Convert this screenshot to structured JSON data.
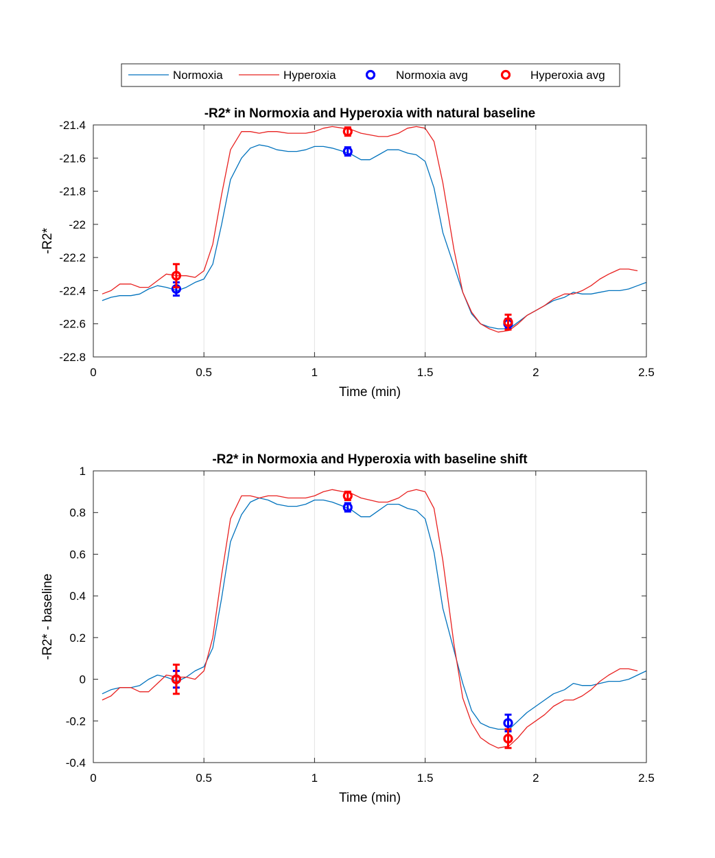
{
  "legend": {
    "entries": [
      {
        "label": "Normoxia",
        "kind": "line",
        "color": "#0072BD"
      },
      {
        "label": "Hyperoxia",
        "kind": "line",
        "color": "#E8201F"
      },
      {
        "label": "Normoxia avg",
        "kind": "marker",
        "color": "#0000FF"
      },
      {
        "label": "Hyperoxia avg",
        "kind": "marker",
        "color": "#FF0000"
      }
    ]
  },
  "chart_data": [
    {
      "type": "line",
      "title": "-R2* in Normoxia and Hyperoxia with natural baseline",
      "xlabel": "Time (min)",
      "ylabel": "-R2*",
      "xlim": [
        0,
        2.5
      ],
      "ylim": [
        -22.8,
        -21.4
      ],
      "xticks": [
        0,
        0.5,
        1,
        1.5,
        2,
        2.5
      ],
      "xtick_labels": [
        "0",
        "0.5",
        "1",
        "1.5",
        "2",
        "2.5"
      ],
      "yticks": [
        -22.8,
        -22.6,
        -22.4,
        -22.2,
        -22,
        -21.8,
        -21.6,
        -21.4
      ],
      "ytick_labels": [
        "-22.8",
        "-22.6",
        "-22.4",
        "-22.2",
        "-22",
        "-21.8",
        "-21.6",
        "-21.4"
      ],
      "xgrid": [
        0.5,
        1,
        1.5,
        2
      ],
      "series": [
        {
          "name": "Normoxia",
          "color": "#0072BD",
          "x": [
            0.04,
            0.08,
            0.12,
            0.17,
            0.21,
            0.25,
            0.29,
            0.33,
            0.38,
            0.42,
            0.46,
            0.5,
            0.54,
            0.58,
            0.62,
            0.67,
            0.71,
            0.75,
            0.79,
            0.83,
            0.88,
            0.92,
            0.96,
            1.0,
            1.04,
            1.08,
            1.13,
            1.17,
            1.21,
            1.25,
            1.29,
            1.33,
            1.38,
            1.42,
            1.46,
            1.5,
            1.54,
            1.58,
            1.63,
            1.67,
            1.71,
            1.75,
            1.79,
            1.83,
            1.88,
            1.92,
            1.96,
            2.0,
            2.04,
            2.08,
            2.13,
            2.17,
            2.21,
            2.25,
            2.29,
            2.33,
            2.38,
            2.42,
            2.46,
            2.5
          ],
          "y": [
            -22.46,
            -22.44,
            -22.43,
            -22.43,
            -22.42,
            -22.39,
            -22.37,
            -22.38,
            -22.4,
            -22.38,
            -22.35,
            -22.33,
            -22.24,
            -22.0,
            -21.73,
            -21.6,
            -21.54,
            -21.52,
            -21.53,
            -21.55,
            -21.56,
            -21.56,
            -21.55,
            -21.53,
            -21.53,
            -21.54,
            -21.56,
            -21.58,
            -21.61,
            -21.61,
            -21.58,
            -21.55,
            -21.55,
            -21.57,
            -21.58,
            -21.62,
            -21.78,
            -22.05,
            -22.25,
            -22.41,
            -22.54,
            -22.6,
            -22.62,
            -22.63,
            -22.63,
            -22.59,
            -22.55,
            -22.52,
            -22.49,
            -22.46,
            -22.44,
            -22.41,
            -22.42,
            -22.42,
            -22.41,
            -22.4,
            -22.4,
            -22.39,
            -22.37,
            -22.35
          ]
        },
        {
          "name": "Hyperoxia",
          "color": "#E8201F",
          "x": [
            0.04,
            0.08,
            0.12,
            0.17,
            0.21,
            0.25,
            0.29,
            0.33,
            0.38,
            0.42,
            0.46,
            0.5,
            0.54,
            0.58,
            0.62,
            0.67,
            0.71,
            0.75,
            0.79,
            0.83,
            0.88,
            0.92,
            0.96,
            1.0,
            1.04,
            1.08,
            1.13,
            1.17,
            1.21,
            1.25,
            1.29,
            1.33,
            1.38,
            1.42,
            1.46,
            1.5,
            1.54,
            1.58,
            1.63,
            1.67,
            1.71,
            1.75,
            1.79,
            1.83,
            1.88,
            1.92,
            1.96,
            2.0,
            2.04,
            2.08,
            2.13,
            2.17,
            2.21,
            2.25,
            2.29,
            2.33,
            2.38,
            2.42,
            2.46
          ],
          "y": [
            -22.42,
            -22.4,
            -22.36,
            -22.36,
            -22.38,
            -22.38,
            -22.34,
            -22.3,
            -22.31,
            -22.31,
            -22.32,
            -22.28,
            -22.12,
            -21.82,
            -21.55,
            -21.44,
            -21.44,
            -21.45,
            -21.44,
            -21.44,
            -21.45,
            -21.45,
            -21.45,
            -21.44,
            -21.42,
            -21.41,
            -21.42,
            -21.43,
            -21.45,
            -21.46,
            -21.47,
            -21.47,
            -21.45,
            -21.42,
            -21.41,
            -21.42,
            -21.5,
            -21.75,
            -22.15,
            -22.41,
            -22.53,
            -22.6,
            -22.63,
            -22.65,
            -22.64,
            -22.6,
            -22.55,
            -22.52,
            -22.49,
            -22.45,
            -22.42,
            -22.42,
            -22.4,
            -22.37,
            -22.33,
            -22.3,
            -22.27,
            -22.27,
            -22.28
          ]
        }
      ],
      "averages": [
        {
          "name": "Normoxia avg",
          "color": "#0000FF",
          "points": [
            {
              "x": 0.375,
              "y": -22.39,
              "err": 0.04
            },
            {
              "x": 1.15,
              "y": -21.56,
              "err": 0.025
            },
            {
              "x": 1.875,
              "y": -22.6,
              "err": 0.03
            }
          ]
        },
        {
          "name": "Hyperoxia avg",
          "color": "#FF0000",
          "points": [
            {
              "x": 0.375,
              "y": -22.31,
              "err": 0.07
            },
            {
              "x": 1.15,
              "y": -21.44,
              "err": 0.025
            },
            {
              "x": 1.875,
              "y": -22.59,
              "err": 0.045
            }
          ]
        }
      ]
    },
    {
      "type": "line",
      "title": "-R2* in Normoxia and Hyperoxia with baseline shift",
      "xlabel": "Time (min)",
      "ylabel": "-R2* - baseline",
      "xlim": [
        0,
        2.5
      ],
      "ylim": [
        -0.4,
        1
      ],
      "xticks": [
        0,
        0.5,
        1,
        1.5,
        2,
        2.5
      ],
      "xtick_labels": [
        "0",
        "0.5",
        "1",
        "1.5",
        "2",
        "2.5"
      ],
      "yticks": [
        -0.4,
        -0.2,
        0,
        0.2,
        0.4,
        0.6,
        0.8,
        1
      ],
      "ytick_labels": [
        "-0.4",
        "-0.2",
        "0",
        "0.2",
        "0.4",
        "0.6",
        "0.8",
        "1"
      ],
      "xgrid": [
        0.5,
        1,
        1.5,
        2
      ],
      "series": [
        {
          "name": "Normoxia",
          "color": "#0072BD",
          "x": [
            0.04,
            0.08,
            0.12,
            0.17,
            0.21,
            0.25,
            0.29,
            0.33,
            0.38,
            0.42,
            0.46,
            0.5,
            0.54,
            0.58,
            0.62,
            0.67,
            0.71,
            0.75,
            0.79,
            0.83,
            0.88,
            0.92,
            0.96,
            1.0,
            1.04,
            1.08,
            1.13,
            1.17,
            1.21,
            1.25,
            1.29,
            1.33,
            1.38,
            1.42,
            1.46,
            1.5,
            1.54,
            1.58,
            1.63,
            1.67,
            1.71,
            1.75,
            1.79,
            1.83,
            1.88,
            1.92,
            1.96,
            2.0,
            2.04,
            2.08,
            2.13,
            2.17,
            2.21,
            2.25,
            2.29,
            2.33,
            2.38,
            2.42,
            2.46,
            2.5
          ],
          "y": [
            -0.07,
            -0.05,
            -0.04,
            -0.04,
            -0.03,
            0.0,
            0.02,
            0.01,
            -0.01,
            0.01,
            0.04,
            0.06,
            0.15,
            0.39,
            0.66,
            0.79,
            0.85,
            0.87,
            0.86,
            0.84,
            0.83,
            0.83,
            0.84,
            0.86,
            0.86,
            0.85,
            0.83,
            0.81,
            0.78,
            0.78,
            0.81,
            0.84,
            0.84,
            0.82,
            0.81,
            0.77,
            0.61,
            0.34,
            0.14,
            -0.02,
            -0.15,
            -0.21,
            -0.23,
            -0.24,
            -0.24,
            -0.2,
            -0.16,
            -0.13,
            -0.1,
            -0.07,
            -0.05,
            -0.02,
            -0.03,
            -0.03,
            -0.02,
            -0.01,
            -0.01,
            0.0,
            0.02,
            0.04
          ]
        },
        {
          "name": "Hyperoxia",
          "color": "#E8201F",
          "x": [
            0.04,
            0.08,
            0.12,
            0.17,
            0.21,
            0.25,
            0.29,
            0.33,
            0.38,
            0.42,
            0.46,
            0.5,
            0.54,
            0.58,
            0.62,
            0.67,
            0.71,
            0.75,
            0.79,
            0.83,
            0.88,
            0.92,
            0.96,
            1.0,
            1.04,
            1.08,
            1.13,
            1.17,
            1.21,
            1.25,
            1.29,
            1.33,
            1.38,
            1.42,
            1.46,
            1.5,
            1.54,
            1.58,
            1.63,
            1.67,
            1.71,
            1.75,
            1.79,
            1.83,
            1.88,
            1.92,
            1.96,
            2.0,
            2.04,
            2.08,
            2.13,
            2.17,
            2.21,
            2.25,
            2.29,
            2.33,
            2.38,
            2.42,
            2.46
          ],
          "y": [
            -0.1,
            -0.08,
            -0.04,
            -0.04,
            -0.06,
            -0.06,
            -0.02,
            0.02,
            0.01,
            0.01,
            0.0,
            0.04,
            0.2,
            0.5,
            0.77,
            0.88,
            0.88,
            0.87,
            0.88,
            0.88,
            0.87,
            0.87,
            0.87,
            0.88,
            0.9,
            0.91,
            0.9,
            0.89,
            0.87,
            0.86,
            0.85,
            0.85,
            0.87,
            0.9,
            0.91,
            0.9,
            0.82,
            0.57,
            0.17,
            -0.09,
            -0.21,
            -0.28,
            -0.31,
            -0.33,
            -0.32,
            -0.28,
            -0.23,
            -0.2,
            -0.17,
            -0.13,
            -0.1,
            -0.1,
            -0.08,
            -0.05,
            -0.01,
            0.02,
            0.05,
            0.05,
            0.04
          ]
        }
      ],
      "averages": [
        {
          "name": "Normoxia avg",
          "color": "#0000FF",
          "points": [
            {
              "x": 0.375,
              "y": 0.0,
              "err": 0.04
            },
            {
              "x": 1.15,
              "y": 0.825,
              "err": 0.02
            },
            {
              "x": 1.875,
              "y": -0.21,
              "err": 0.04
            }
          ]
        },
        {
          "name": "Hyperoxia avg",
          "color": "#FF0000",
          "points": [
            {
              "x": 0.375,
              "y": 0.0,
              "err": 0.07
            },
            {
              "x": 1.15,
              "y": 0.88,
              "err": 0.02
            },
            {
              "x": 1.875,
              "y": -0.285,
              "err": 0.045
            }
          ]
        }
      ]
    }
  ]
}
